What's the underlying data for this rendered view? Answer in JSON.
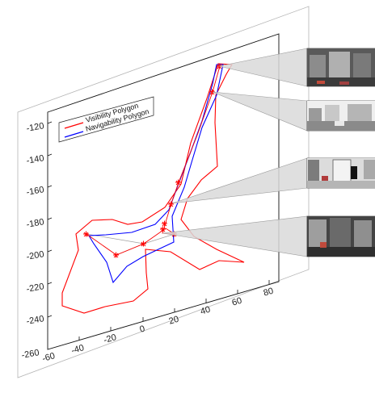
{
  "figure": {
    "legend": {
      "visibility": "Visibility Polygon",
      "navigability": "Navigability Polygon",
      "visibility_color": "#ff0000",
      "navigability_color": "#0000ff"
    },
    "y_ticks": [
      "-120",
      "-140",
      "-160",
      "-180",
      "-200",
      "-220",
      "-240",
      "-260"
    ],
    "x_ticks": [
      "-60",
      "-40",
      "-20",
      "0",
      "20",
      "40",
      "60",
      "80"
    ],
    "marker_color": "#ff0000",
    "panorama_count": 4
  }
}
